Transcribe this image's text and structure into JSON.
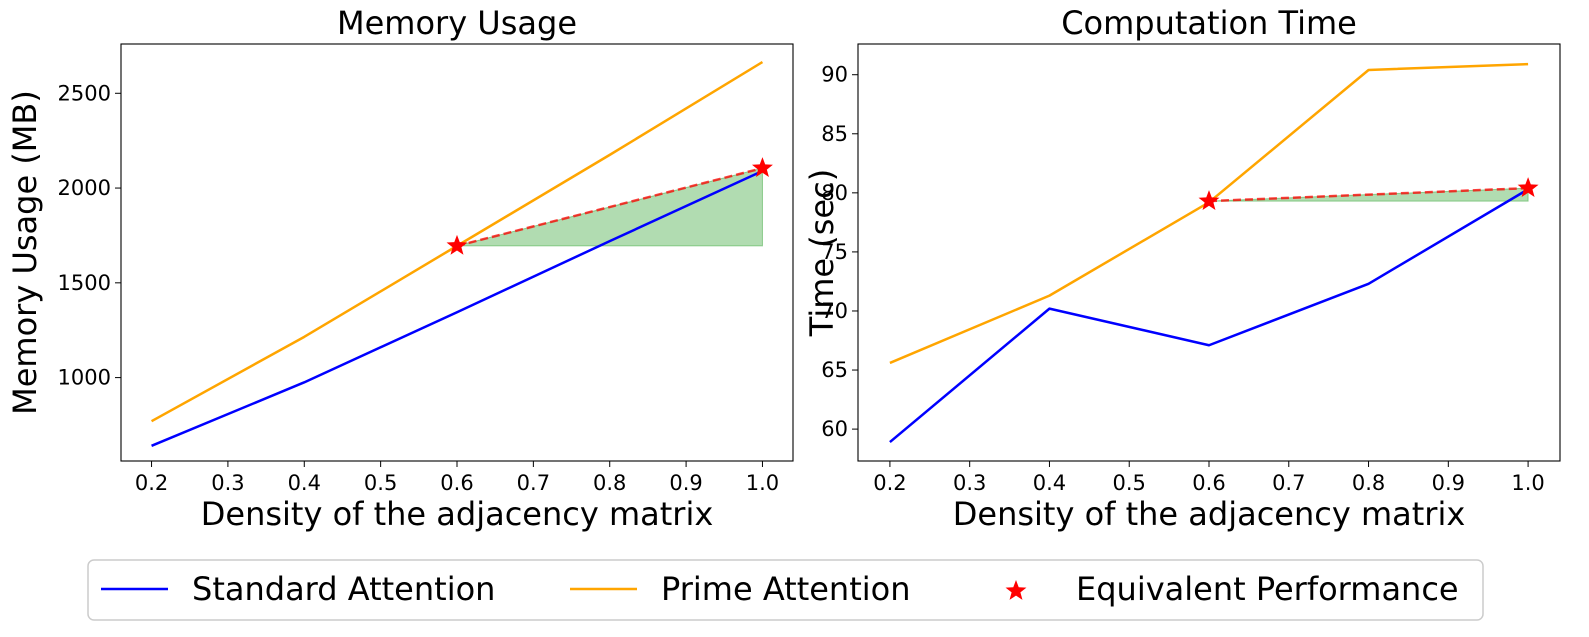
{
  "figure": {
    "legend": {
      "entries": [
        {
          "label": "Standard Attention",
          "color": "#0000ff",
          "kind": "line"
        },
        {
          "label": "Prime Attention",
          "color": "#ffa500",
          "kind": "line"
        },
        {
          "label": "Equivalent Performance",
          "color": "#ff0000",
          "kind": "star"
        }
      ]
    }
  },
  "chart_data": [
    {
      "type": "line",
      "title": "Memory Usage",
      "xlabel": "Density of the adjacency matrix",
      "ylabel": "Memory Usage (MB)",
      "xlim": [
        0.16,
        1.04
      ],
      "ylim": [
        560,
        2760
      ],
      "xticks": [
        0.2,
        0.3,
        0.4,
        0.5,
        0.6,
        0.7,
        0.8,
        0.9,
        1.0
      ],
      "xtick_labels": [
        "0.2",
        "0.3",
        "0.4",
        "0.5",
        "0.6",
        "0.7",
        "0.8",
        "0.9",
        "1.0"
      ],
      "yticks": [
        1000,
        1500,
        2000,
        2500
      ],
      "ytick_labels": [
        "1000",
        "1500",
        "2000",
        "2500"
      ],
      "series": [
        {
          "name": "Standard Attention",
          "color": "#0000ff",
          "x": [
            0.2,
            0.4,
            0.6,
            0.8,
            1.0
          ],
          "y": [
            640,
            975,
            1345,
            1720,
            2090
          ]
        },
        {
          "name": "Prime Attention",
          "color": "#ffa500",
          "x": [
            0.2,
            0.4,
            0.6,
            0.8,
            1.0
          ],
          "y": [
            770,
            1215,
            1695,
            2175,
            2665
          ]
        }
      ],
      "equivalent_points": {
        "x": [
          0.6,
          1.0
        ],
        "y": [
          1695,
          2105
        ]
      },
      "shaded_region": {
        "x": [
          0.6,
          1.0
        ],
        "y_bottom": 1695,
        "y_top": [
          1695,
          2105
        ],
        "color": "#2ca02c"
      }
    },
    {
      "type": "line",
      "title": "Computation Time",
      "xlabel": "Density of the adjacency matrix",
      "ylabel": "Time (sec)",
      "xlim": [
        0.16,
        1.04
      ],
      "ylim": [
        57.3,
        92.6
      ],
      "xticks": [
        0.2,
        0.3,
        0.4,
        0.5,
        0.6,
        0.7,
        0.8,
        0.9,
        1.0
      ],
      "xtick_labels": [
        "0.2",
        "0.3",
        "0.4",
        "0.5",
        "0.6",
        "0.7",
        "0.8",
        "0.9",
        "1.0"
      ],
      "yticks": [
        60,
        65,
        70,
        75,
        80,
        85,
        90
      ],
      "ytick_labels": [
        "60",
        "65",
        "70",
        "75",
        "80",
        "85",
        "90"
      ],
      "series": [
        {
          "name": "Standard Attention",
          "color": "#0000ff",
          "x": [
            0.2,
            0.4,
            0.6,
            0.8,
            1.0
          ],
          "y": [
            58.9,
            70.2,
            67.1,
            72.3,
            80.3
          ]
        },
        {
          "name": "Prime Attention",
          "color": "#ffa500",
          "x": [
            0.2,
            0.4,
            0.6,
            0.8,
            1.0
          ],
          "y": [
            65.6,
            71.3,
            79.2,
            90.4,
            90.9
          ]
        }
      ],
      "equivalent_points": {
        "x": [
          0.6,
          1.0
        ],
        "y": [
          79.3,
          80.4
        ]
      },
      "shaded_region": {
        "x": [
          0.6,
          1.0
        ],
        "y_bottom": 79.3,
        "y_top": [
          79.3,
          80.4
        ],
        "color": "#2ca02c"
      }
    }
  ]
}
